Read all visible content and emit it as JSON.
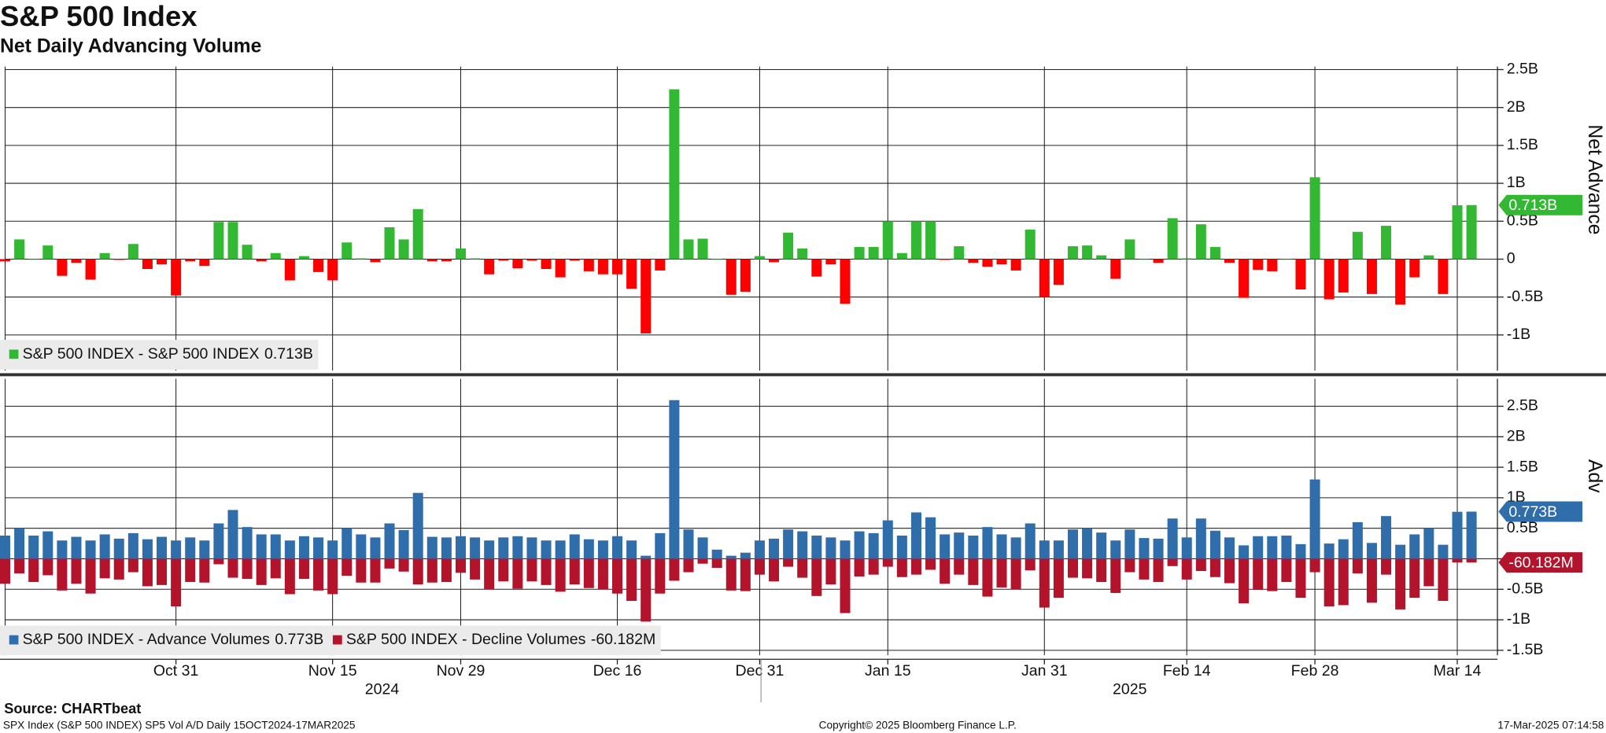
{
  "chart_data": {
    "type": "bar",
    "title": "S&P 500 Index",
    "subtitle": "Net Daily Advancing Volume",
    "source": "Source: CHARTbeat",
    "footer_left": "SPX Index (S&P 500 INDEX) SP5 Vol A/D  Daily 15OCT2024-17MAR2025",
    "footer_center": "Copyright© 2025 Bloomberg Finance L.P.",
    "footer_right": "17-Mar-2025 07:14:58",
    "year_labels": [
      "2024",
      "2025"
    ],
    "grid": true,
    "categories": [
      null,
      null,
      null,
      null,
      null,
      null,
      null,
      null,
      null,
      null,
      null,
      null,
      "Oct 31",
      null,
      null,
      null,
      null,
      null,
      null,
      null,
      null,
      null,
      null,
      "Nov 15",
      null,
      null,
      null,
      null,
      null,
      null,
      null,
      null,
      "Nov 29",
      null,
      null,
      null,
      null,
      null,
      null,
      null,
      null,
      null,
      null,
      "Dec 16",
      null,
      null,
      null,
      null,
      null,
      null,
      null,
      null,
      null,
      "Dec 31",
      null,
      null,
      null,
      null,
      null,
      null,
      null,
      null,
      "Jan 15",
      null,
      null,
      null,
      null,
      null,
      null,
      null,
      null,
      null,
      null,
      "Jan 31",
      null,
      null,
      null,
      null,
      null,
      null,
      null,
      null,
      null,
      "Feb 14",
      null,
      null,
      null,
      null,
      null,
      null,
      null,
      null,
      "Feb 28",
      null,
      null,
      null,
      null,
      null,
      null,
      null,
      null,
      null,
      "Mar 14",
      null
    ],
    "panels": [
      {
        "y_label": "Net Advance",
        "ylim": [
          -1.47,
          2.54
        ],
        "yticks": [
          {
            "value": -1,
            "label": "-1B"
          },
          {
            "value": -0.5,
            "label": "-0.5B"
          },
          0,
          {
            "value": 0.5,
            "label": "0.5B"
          },
          {
            "value": 1,
            "label": "1B"
          },
          {
            "value": 1.5,
            "label": "1.5B"
          },
          {
            "value": 2,
            "label": "2B"
          },
          {
            "value": 2.5,
            "label": "2.5B"
          }
        ],
        "series": [
          {
            "name": "S&P 500 INDEX - S&P 500 INDEX",
            "last_label": "0.713B",
            "color": "#33b833",
            "negative_color": "#ff0000",
            "values": [
              -0.03,
              0.26,
              0,
              0.18,
              -0.22,
              -0.05,
              -0.27,
              0.08,
              -0.01,
              0.2,
              -0.13,
              -0.07,
              -0.48,
              -0.03,
              -0.09,
              0.49,
              0.49,
              0.19,
              -0.03,
              0.08,
              -0.28,
              0.04,
              -0.17,
              -0.28,
              0.22,
              0.01,
              -0.04,
              0.42,
              0.26,
              0.66,
              -0.03,
              -0.03,
              0.14,
              0.01,
              -0.2,
              -0.02,
              -0.12,
              -0.02,
              -0.13,
              -0.24,
              -0.02,
              -0.16,
              -0.2,
              -0.2,
              -0.39,
              -0.98,
              -0.15,
              2.24,
              0.26,
              0.27,
              0,
              -0.47,
              -0.43,
              0.04,
              -0.04,
              0.35,
              0.14,
              -0.23,
              -0.07,
              -0.59,
              0.16,
              0.16,
              0.5,
              0.08,
              0.5,
              0.5,
              -0.01,
              0.17,
              -0.05,
              -0.1,
              -0.07,
              -0.15,
              0.39,
              -0.5,
              -0.34,
              0.17,
              0.18,
              0.05,
              -0.26,
              0.26,
              0,
              -0.05,
              0.54,
              0.01,
              0.46,
              0.16,
              -0.05,
              -0.51,
              -0.14,
              -0.16,
              0,
              -0.4,
              1.08,
              -0.53,
              -0.44,
              0.36,
              -0.46,
              0.44,
              -0.6,
              -0.24,
              0.05,
              -0.46,
              0.71,
              0.713
            ]
          }
        ]
      },
      {
        "y_label": "Adv",
        "ylim": [
          -1.58,
          2.95
        ],
        "yticks": [
          {
            "value": -1.5,
            "label": "-1.5B"
          },
          {
            "value": -1,
            "label": "-1B"
          },
          {
            "value": -0.5,
            "label": "-0.5B"
          },
          0,
          {
            "value": 0.5,
            "label": "0.5B"
          },
          {
            "value": 1,
            "label": "1B"
          },
          {
            "value": 1.5,
            "label": "1.5B"
          },
          {
            "value": 2,
            "label": "2B"
          },
          {
            "value": 2.5,
            "label": "2.5B"
          }
        ],
        "series": [
          {
            "name": "S&P 500 INDEX - Advance Volumes",
            "last_label": "0.773B",
            "color": "#2f6eab",
            "values": [
              0.38,
              0.5,
              0.38,
              0.45,
              0.3,
              0.36,
              0.3,
              0.4,
              0.33,
              0.42,
              0.32,
              0.36,
              0.3,
              0.35,
              0.3,
              0.58,
              0.8,
              0.52,
              0.4,
              0.4,
              0.3,
              0.37,
              0.35,
              0.3,
              0.5,
              0.4,
              0.35,
              0.58,
              0.47,
              1.08,
              0.36,
              0.35,
              0.37,
              0.35,
              0.3,
              0.35,
              0.37,
              0.35,
              0.3,
              0.3,
              0.4,
              0.32,
              0.3,
              0.37,
              0.3,
              0.05,
              0.42,
              2.6,
              0.48,
              0.35,
              0.15,
              0.05,
              0.1,
              0.3,
              0.33,
              0.48,
              0.45,
              0.38,
              0.35,
              0.3,
              0.45,
              0.42,
              0.63,
              0.38,
              0.76,
              0.68,
              0.4,
              0.43,
              0.38,
              0.52,
              0.4,
              0.35,
              0.58,
              0.3,
              0.3,
              0.48,
              0.5,
              0.43,
              0.3,
              0.48,
              0.34,
              0.33,
              0.66,
              0.35,
              0.66,
              0.46,
              0.35,
              0.22,
              0.37,
              0.37,
              0.38,
              0.24,
              1.3,
              0.25,
              0.32,
              0.6,
              0.26,
              0.7,
              0.23,
              0.4,
              0.5,
              0.23,
              0.77,
              0.773
            ]
          },
          {
            "name": "S&P 500 INDEX - Decline Volumes",
            "last_label": "-60.182M",
            "color": "#b3142c",
            "values": [
              -0.41,
              -0.24,
              -0.38,
              -0.27,
              -0.52,
              -0.41,
              -0.57,
              -0.32,
              -0.34,
              -0.22,
              -0.45,
              -0.43,
              -0.78,
              -0.38,
              -0.39,
              -0.09,
              -0.31,
              -0.33,
              -0.43,
              -0.32,
              -0.58,
              -0.33,
              -0.52,
              -0.58,
              -0.28,
              -0.39,
              -0.39,
              -0.16,
              -0.21,
              -0.42,
              -0.39,
              -0.38,
              -0.23,
              -0.34,
              -0.5,
              -0.37,
              -0.49,
              -0.37,
              -0.43,
              -0.54,
              -0.42,
              -0.48,
              -0.5,
              -0.57,
              -0.69,
              -1.03,
              -0.57,
              -0.36,
              -0.22,
              -0.08,
              -0.15,
              -0.52,
              -0.53,
              -0.26,
              -0.37,
              -0.13,
              -0.31,
              -0.61,
              -0.42,
              -0.89,
              -0.29,
              -0.26,
              -0.13,
              -0.3,
              -0.26,
              -0.18,
              -0.41,
              -0.26,
              -0.43,
              -0.62,
              -0.47,
              -0.5,
              -0.19,
              -0.8,
              -0.64,
              -0.31,
              -0.32,
              -0.38,
              -0.56,
              -0.22,
              -0.34,
              -0.38,
              -0.12,
              -0.34,
              -0.2,
              -0.3,
              -0.4,
              -0.73,
              -0.51,
              -0.53,
              -0.38,
              -0.64,
              -0.22,
              -0.78,
              -0.76,
              -0.24,
              -0.72,
              -0.26,
              -0.83,
              -0.64,
              -0.45,
              -0.69,
              -0.06,
              -0.060182
            ]
          }
        ]
      }
    ]
  }
}
